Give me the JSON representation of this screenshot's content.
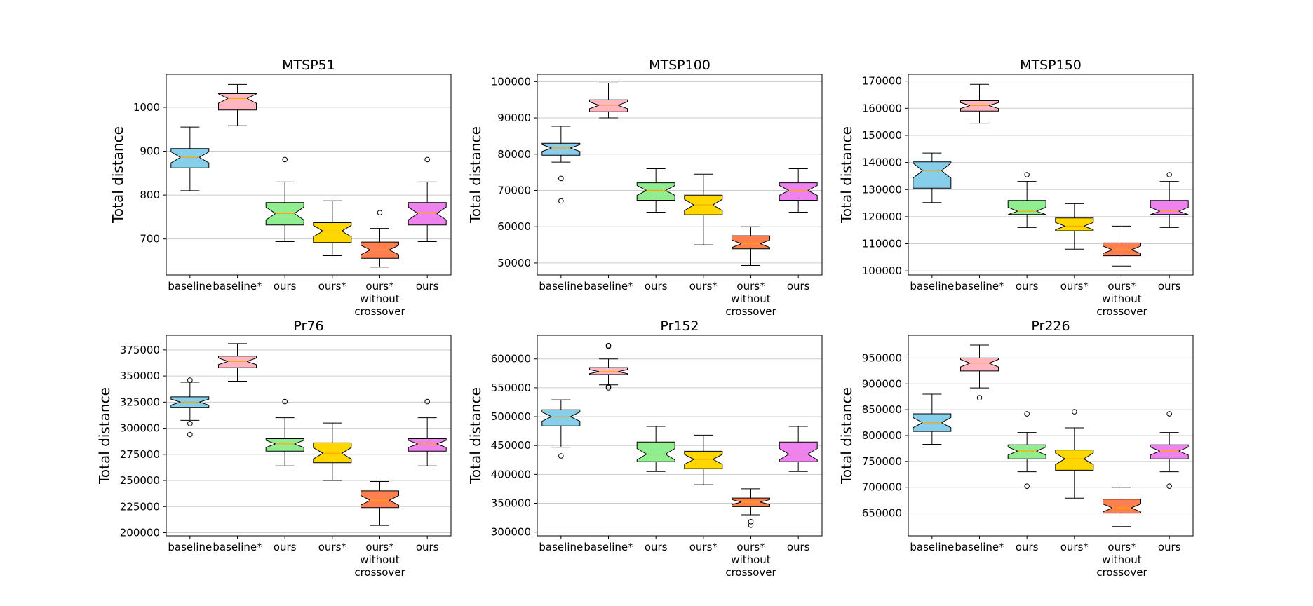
{
  "chart_data": [
    {
      "type": "boxplot",
      "title": "MTSP51",
      "ylabel": "Total distance",
      "categories": [
        "baseline",
        "baseline*",
        "ours",
        "ours*",
        "ours*\nwithout\ncrossover",
        "ours"
      ],
      "ylim": [
        618,
        1075
      ],
      "yticks": [
        700,
        800,
        900,
        1000
      ],
      "ytick_labels": [
        "700",
        "800",
        "900",
        "1000"
      ],
      "grid": "y",
      "boxes": [
        {
          "whislo": 810,
          "q1": 862,
          "med": 886,
          "q3": 906,
          "whishi": 955,
          "fliers": [],
          "color": "#87CEEB"
        },
        {
          "whislo": 958,
          "q1": 994,
          "med": 1020,
          "q3": 1031,
          "whishi": 1052,
          "fliers": [],
          "color": "#FFB6C1"
        },
        {
          "whislo": 694,
          "q1": 732,
          "med": 758,
          "q3": 783,
          "whishi": 830,
          "fliers": [
            881
          ],
          "color": "#90EE90"
        },
        {
          "whislo": 662,
          "q1": 692,
          "med": 718,
          "q3": 737,
          "whishi": 787,
          "fliers": [],
          "color": "#FFD700"
        },
        {
          "whislo": 636,
          "q1": 656,
          "med": 675,
          "q3": 693,
          "whishi": 724,
          "fliers": [
            760
          ],
          "color": "#FF7F50"
        },
        {
          "whislo": 694,
          "q1": 732,
          "med": 758,
          "q3": 783,
          "whishi": 830,
          "fliers": [
            881
          ],
          "color": "#EE82EE"
        }
      ]
    },
    {
      "type": "boxplot",
      "title": "MTSP100",
      "ylabel": "Total distance",
      "categories": [
        "baseline",
        "baseline*",
        "ours",
        "ours*",
        "ours*\nwithout\ncrossover",
        "ours"
      ],
      "ylim": [
        46700,
        102000
      ],
      "yticks": [
        50000,
        60000,
        70000,
        80000,
        90000,
        100000
      ],
      "ytick_labels": [
        "50000",
        "60000",
        "70000",
        "80000",
        "90000",
        "100000"
      ],
      "grid": "y",
      "boxes": [
        {
          "whislo": 77800,
          "q1": 79700,
          "med": 81700,
          "q3": 83000,
          "whishi": 87700,
          "fliers": [
            73300,
            67100
          ],
          "color": "#87CEEB"
        },
        {
          "whislo": 90000,
          "q1": 91700,
          "med": 93500,
          "q3": 95000,
          "whishi": 99600,
          "fliers": [],
          "color": "#FFB6C1"
        },
        {
          "whislo": 64000,
          "q1": 67300,
          "med": 70000,
          "q3": 72100,
          "whishi": 76000,
          "fliers": [],
          "color": "#90EE90"
        },
        {
          "whislo": 55000,
          "q1": 63300,
          "med": 66000,
          "q3": 68700,
          "whishi": 74500,
          "fliers": [],
          "color": "#FFD700"
        },
        {
          "whislo": 49300,
          "q1": 53900,
          "med": 55300,
          "q3": 57500,
          "whishi": 60000,
          "fliers": [],
          "color": "#FF7F50"
        },
        {
          "whislo": 64000,
          "q1": 67300,
          "med": 70000,
          "q3": 72100,
          "whishi": 76000,
          "fliers": [],
          "color": "#EE82EE"
        }
      ]
    },
    {
      "type": "boxplot",
      "title": "MTSP150",
      "ylabel": "Total distance",
      "categories": [
        "baseline",
        "baseline*",
        "ours",
        "ours*",
        "ours*\nwithout\ncrossover",
        "ours"
      ],
      "ylim": [
        98500,
        172500
      ],
      "yticks": [
        100000,
        110000,
        120000,
        130000,
        140000,
        150000,
        160000,
        170000
      ],
      "ytick_labels": [
        "100000",
        "110000",
        "120000",
        "130000",
        "140000",
        "150000",
        "160000",
        "170000"
      ],
      "grid": "y",
      "boxes": [
        {
          "whislo": 125200,
          "q1": 130500,
          "med": 137000,
          "q3": 140200,
          "whishi": 143500,
          "fliers": [],
          "color": "#87CEEB"
        },
        {
          "whislo": 154500,
          "q1": 159000,
          "med": 161000,
          "q3": 162800,
          "whishi": 168800,
          "fliers": [],
          "color": "#FFB6C1"
        },
        {
          "whislo": 116000,
          "q1": 120800,
          "med": 122000,
          "q3": 126000,
          "whishi": 133000,
          "fliers": [
            135500
          ],
          "color": "#90EE90"
        },
        {
          "whislo": 108000,
          "q1": 114800,
          "med": 116500,
          "q3": 119500,
          "whishi": 124800,
          "fliers": [],
          "color": "#FFD700"
        },
        {
          "whislo": 101800,
          "q1": 105600,
          "med": 107800,
          "q3": 110300,
          "whishi": 116500,
          "fliers": [],
          "color": "#FF7F50"
        },
        {
          "whislo": 116000,
          "q1": 120800,
          "med": 122000,
          "q3": 126000,
          "whishi": 133000,
          "fliers": [
            135500
          ],
          "color": "#EE82EE"
        }
      ]
    },
    {
      "type": "boxplot",
      "title": "Pr76",
      "ylabel": "Total distance",
      "categories": [
        "baseline",
        "baseline*",
        "ours",
        "ours*",
        "ours*\nwithout\ncrossover",
        "ours"
      ],
      "ylim": [
        197000,
        389000
      ],
      "yticks": [
        200000,
        225000,
        250000,
        275000,
        300000,
        325000,
        350000,
        375000
      ],
      "ytick_labels": [
        "200000",
        "225000",
        "250000",
        "275000",
        "300000",
        "325000",
        "350000",
        "375000"
      ],
      "grid": "y",
      "boxes": [
        {
          "whislo": 307500,
          "q1": 320000,
          "med": 325000,
          "q3": 330000,
          "whishi": 344000,
          "fliers": [
            346000,
            304500,
            294000
          ],
          "color": "#87CEEB"
        },
        {
          "whislo": 345000,
          "q1": 358000,
          "med": 364000,
          "q3": 369000,
          "whishi": 381000,
          "fliers": [],
          "color": "#FFB6C1"
        },
        {
          "whislo": 264000,
          "q1": 278000,
          "med": 285000,
          "q3": 290000,
          "whishi": 310000,
          "fliers": [
            325500
          ],
          "color": "#90EE90"
        },
        {
          "whislo": 250000,
          "q1": 267000,
          "med": 276000,
          "q3": 286000,
          "whishi": 305000,
          "fliers": [],
          "color": "#FFD700"
        },
        {
          "whislo": 207000,
          "q1": 224000,
          "med": 231000,
          "q3": 240000,
          "whishi": 249000,
          "fliers": [],
          "color": "#FF7F50"
        },
        {
          "whislo": 264000,
          "q1": 278000,
          "med": 285000,
          "q3": 290000,
          "whishi": 310000,
          "fliers": [
            325500
          ],
          "color": "#EE82EE"
        }
      ]
    },
    {
      "type": "boxplot",
      "title": "Pr152",
      "ylabel": "Total distance",
      "categories": [
        "baseline",
        "baseline*",
        "ours",
        "ours*",
        "ours*\nwithout\ncrossover",
        "ours"
      ],
      "ylim": [
        293500,
        641000
      ],
      "yticks": [
        300000,
        350000,
        400000,
        450000,
        500000,
        550000,
        600000
      ],
      "ytick_labels": [
        "300000",
        "350000",
        "400000",
        "450000",
        "500000",
        "550000",
        "600000"
      ],
      "grid": "y",
      "boxes": [
        {
          "whislo": 447000,
          "q1": 484000,
          "med": 500000,
          "q3": 512000,
          "whishi": 529000,
          "fliers": [
            432000
          ],
          "color": "#87CEEB"
        },
        {
          "whislo": 555000,
          "q1": 573000,
          "med": 578000,
          "q3": 585000,
          "whishi": 600000,
          "fliers": [
            622000,
            623000,
            552000,
            550000
          ],
          "color": "#FFB6C1"
        },
        {
          "whislo": 405000,
          "q1": 422000,
          "med": 435000,
          "q3": 456000,
          "whishi": 483000,
          "fliers": [],
          "color": "#90EE90"
        },
        {
          "whislo": 382000,
          "q1": 410000,
          "med": 426000,
          "q3": 440000,
          "whishi": 468000,
          "fliers": [],
          "color": "#FFD700"
        },
        {
          "whislo": 330000,
          "q1": 344000,
          "med": 352000,
          "q3": 359000,
          "whishi": 375000,
          "fliers": [
            318000,
            312000
          ],
          "color": "#FF7F50"
        },
        {
          "whislo": 405000,
          "q1": 422000,
          "med": 435000,
          "q3": 456000,
          "whishi": 483000,
          "fliers": [],
          "color": "#EE82EE"
        }
      ]
    },
    {
      "type": "boxplot",
      "title": "Pr226",
      "ylabel": "Total distance",
      "categories": [
        "baseline",
        "baseline*",
        "ours",
        "ours*",
        "ours*\nwithout\ncrossover",
        "ours"
      ],
      "ylim": [
        606000,
        994000
      ],
      "yticks": [
        650000,
        700000,
        750000,
        800000,
        850000,
        900000,
        950000
      ],
      "ytick_labels": [
        "650000",
        "700000",
        "750000",
        "800000",
        "850000",
        "900000",
        "950000"
      ],
      "grid": "y",
      "boxes": [
        {
          "whislo": 783000,
          "q1": 808000,
          "med": 825000,
          "q3": 842000,
          "whishi": 880000,
          "fliers": [],
          "color": "#87CEEB"
        },
        {
          "whislo": 892000,
          "q1": 925000,
          "med": 940000,
          "q3": 950000,
          "whishi": 975000,
          "fliers": [
            873000
          ],
          "color": "#FFB6C1"
        },
        {
          "whislo": 730000,
          "q1": 755000,
          "med": 770000,
          "q3": 782000,
          "whishi": 806000,
          "fliers": [
            842000,
            702000
          ],
          "color": "#90EE90"
        },
        {
          "whislo": 679000,
          "q1": 733000,
          "med": 755000,
          "q3": 772000,
          "whishi": 815000,
          "fliers": [
            846000
          ],
          "color": "#FFD700"
        },
        {
          "whislo": 624000,
          "q1": 650000,
          "med": 660000,
          "q3": 677000,
          "whishi": 700000,
          "fliers": [],
          "color": "#FF7F50"
        },
        {
          "whislo": 730000,
          "q1": 755000,
          "med": 770000,
          "q3": 782000,
          "whishi": 806000,
          "fliers": [
            842000,
            702000
          ],
          "color": "#EE82EE"
        }
      ]
    }
  ],
  "style": {
    "median_color": "#FFA500",
    "grid_color": "#CCCCCC",
    "edge_color": "#000000"
  }
}
